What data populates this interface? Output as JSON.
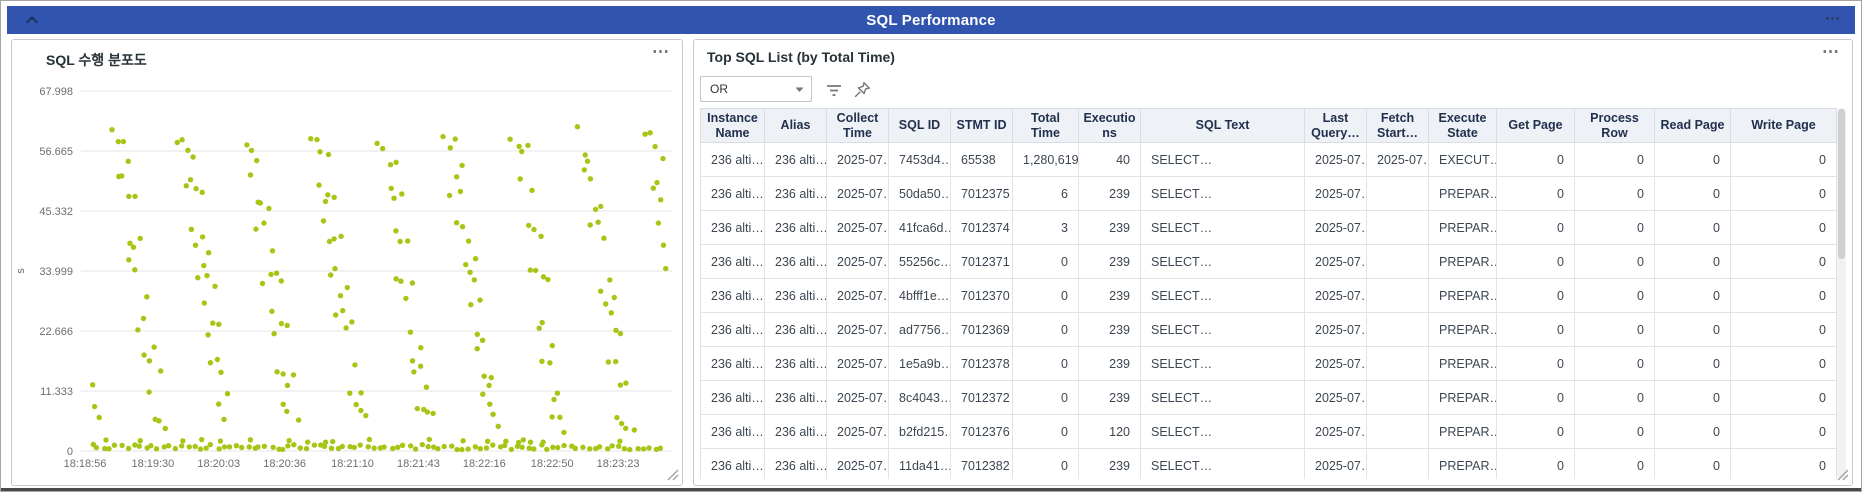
{
  "header": {
    "title": "SQL Performance",
    "menu_icon": "⋯"
  },
  "icons": {
    "collapse": "chevron-up-icon",
    "panel_menu": "ellipsis-horizontal-icon",
    "dropdown": "caret-down-icon",
    "filter": "filter-lines-icon",
    "pin": "pushpin-icon",
    "resize": "corner-resize-icon"
  },
  "colors": {
    "titlebar_blue": "#3154ae",
    "dot_green": "#a5c614",
    "header_bg": "#eef1f6"
  },
  "left_panel": {
    "title": "SQL 수행 분포도",
    "menu_icon": "⋯",
    "chart_data": {
      "type": "scatter",
      "title": "SQL 수행 분포도",
      "xlabel": "",
      "ylabel": "s",
      "ylim": [
        0,
        67.998
      ],
      "y_ticks": [
        0,
        11.333,
        22.666,
        33.999,
        45.332,
        56.665,
        67.998
      ],
      "x_tick_labels": [
        "18:18:56",
        "18:19:30",
        "18:20:03",
        "18:20:36",
        "18:21:10",
        "18:21:43",
        "18:22:16",
        "18:22:50",
        "18:23:23"
      ],
      "x_tick_seconds": [
        0,
        34,
        67,
        100,
        134,
        167,
        200,
        234,
        267
      ],
      "xlim_seconds": [
        -2,
        292
      ],
      "grid": true,
      "legend": "none",
      "point_color": "#a5c614",
      "pattern": "repeating diagonal descending streaks (~0-62 s elapsed, one streak about every 33 s) plus a dense row of points along y=0",
      "generator": {
        "seed": 7,
        "bands": {
          "first_start": -20,
          "period": 33.4,
          "count": 11,
          "lines_per_band": 4,
          "line_dt": 2.6,
          "line_dy": -1.2,
          "steps": 7,
          "step_dt": 3.2,
          "y0": 59,
          "step_dy": -8.4,
          "jitter_t": 1.1,
          "jitter_y": 2.6,
          "skip_prob": 0.12
        },
        "baseline": {
          "step_dt": 3.0,
          "y": 0.5,
          "jitter_t": 0.9,
          "jitter_y": 0.5,
          "double_prob": 0.22
        }
      }
    }
  },
  "right_panel": {
    "title": "Top SQL List (by Total Time)",
    "menu_icon": "⋯",
    "filter": {
      "operator": "OR"
    },
    "table": {
      "columns": [
        "Instance Name",
        "Alias",
        "Collect Time",
        "SQL ID",
        "STMT ID",
        "Total Time",
        "Executions",
        "SQL Text",
        "Last Query…",
        "Fetch Start…",
        "Execute State",
        "Get Page",
        "Process Row",
        "Read Page",
        "Write Page"
      ],
      "rows": [
        [
          "236 alti…",
          "236 alti…",
          "2025-07…",
          "7453d4…",
          "65538",
          "1,280,619",
          "40",
          "SELECT…",
          "2025-07…",
          "2025-07…",
          "EXECUT…",
          "0",
          "0",
          "0",
          "0"
        ],
        [
          "236 alti…",
          "236 alti…",
          "2025-07…",
          "50da50…",
          "7012375",
          "6",
          "239",
          "SELECT…",
          "2025-07…",
          "",
          "PREPAR…",
          "0",
          "0",
          "0",
          "0"
        ],
        [
          "236 alti…",
          "236 alti…",
          "2025-07…",
          "41fca6d…",
          "7012374",
          "3",
          "239",
          "SELECT…",
          "2025-07…",
          "",
          "PREPAR…",
          "0",
          "0",
          "0",
          "0"
        ],
        [
          "236 alti…",
          "236 alti…",
          "2025-07…",
          "55256c…",
          "7012371",
          "0",
          "239",
          "SELECT…",
          "2025-07…",
          "",
          "PREPAR…",
          "0",
          "0",
          "0",
          "0"
        ],
        [
          "236 alti…",
          "236 alti…",
          "2025-07…",
          "4bfff1e…",
          "7012370",
          "0",
          "239",
          "SELECT…",
          "2025-07…",
          "",
          "PREPAR…",
          "0",
          "0",
          "0",
          "0"
        ],
        [
          "236 alti…",
          "236 alti…",
          "2025-07…",
          "ad7756…",
          "7012369",
          "0",
          "239",
          "SELECT…",
          "2025-07…",
          "",
          "PREPAR…",
          "0",
          "0",
          "0",
          "0"
        ],
        [
          "236 alti…",
          "236 alti…",
          "2025-07…",
          "1e5a9b…",
          "7012378",
          "0",
          "239",
          "SELECT…",
          "2025-07…",
          "",
          "PREPAR…",
          "0",
          "0",
          "0",
          "0"
        ],
        [
          "236 alti…",
          "236 alti…",
          "2025-07…",
          "8c4043…",
          "7012372",
          "0",
          "239",
          "SELECT…",
          "2025-07…",
          "",
          "PREPAR…",
          "0",
          "0",
          "0",
          "0"
        ],
        [
          "236 alti…",
          "236 alti…",
          "2025-07…",
          "b2fd215…",
          "7012376",
          "0",
          "120",
          "SELECT…",
          "2025-07…",
          "",
          "PREPAR…",
          "0",
          "0",
          "0",
          "0"
        ],
        [
          "236 alti…",
          "236 alti…",
          "2025-07…",
          "11da41…",
          "7012382",
          "0",
          "239",
          "SELECT…",
          "2025-07…",
          "",
          "PREPAR…",
          "0",
          "0",
          "0",
          "0"
        ]
      ]
    }
  }
}
